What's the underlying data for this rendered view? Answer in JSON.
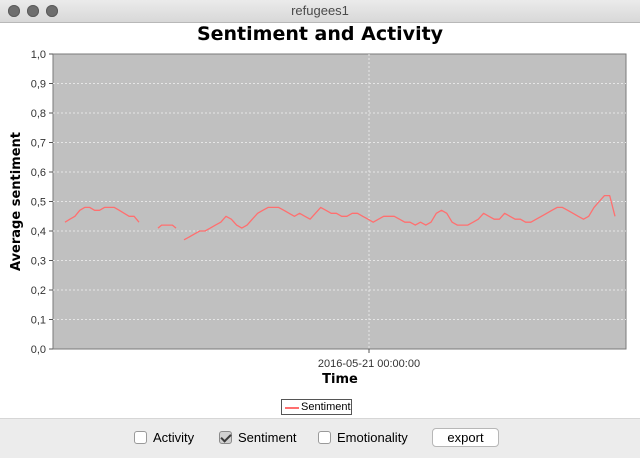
{
  "window": {
    "title": "refugees1"
  },
  "chart_data": {
    "type": "line",
    "title": "Sentiment and Activity",
    "xlabel": "Time",
    "ylabel": "Average sentiment",
    "ylim": [
      0,
      1.0
    ],
    "y_ticks": [
      "0,0",
      "0,1",
      "0,2",
      "0,3",
      "0,4",
      "0,5",
      "0,6",
      "0,7",
      "0,8",
      "0,9",
      "1,0"
    ],
    "x_tick_label": "2016-05-21 00:00:00",
    "grid": true,
    "legend": "bottom-center",
    "series": [
      {
        "name": "Sentiment",
        "color": "#ff6f6f",
        "segments": [
          [
            0.43,
            0.44,
            0.45,
            0.47,
            0.48,
            0.48,
            0.47,
            0.47,
            0.48,
            0.48,
            0.48,
            0.47,
            0.46,
            0.45,
            0.45,
            0.43
          ],
          [
            0.41,
            0.42,
            0.42,
            0.42,
            0.42,
            0.41
          ],
          [
            0.37,
            0.38,
            0.39,
            0.4,
            0.4,
            0.41,
            0.42,
            0.43,
            0.45,
            0.44,
            0.42,
            0.41,
            0.42,
            0.44,
            0.46,
            0.47,
            0.48,
            0.48,
            0.48,
            0.47,
            0.46,
            0.45,
            0.46,
            0.45,
            0.44,
            0.46,
            0.48,
            0.47,
            0.46,
            0.46,
            0.45,
            0.45,
            0.46,
            0.46,
            0.45,
            0.44,
            0.43,
            0.44,
            0.45,
            0.45,
            0.45,
            0.44,
            0.43,
            0.43,
            0.42,
            0.43,
            0.42,
            0.43,
            0.46,
            0.47,
            0.46,
            0.43,
            0.42,
            0.42,
            0.42,
            0.43,
            0.44,
            0.46,
            0.45,
            0.44,
            0.44,
            0.46,
            0.45,
            0.44,
            0.44,
            0.43,
            0.43,
            0.44,
            0.45,
            0.46,
            0.47,
            0.48,
            0.48,
            0.47,
            0.46,
            0.45,
            0.44,
            0.45,
            0.48,
            0.5,
            0.52,
            0.52,
            0.45
          ]
        ]
      }
    ]
  },
  "legend": {
    "label": "Sentiment"
  },
  "controls": {
    "activity_label": "Activity",
    "sentiment_label": "Sentiment",
    "emotionality_label": "Emotionality",
    "export_label": "export"
  },
  "colors": {
    "plot_background": "#c0c0c0",
    "gridline": "#e6e6e6",
    "series": "#ff6f6f"
  }
}
